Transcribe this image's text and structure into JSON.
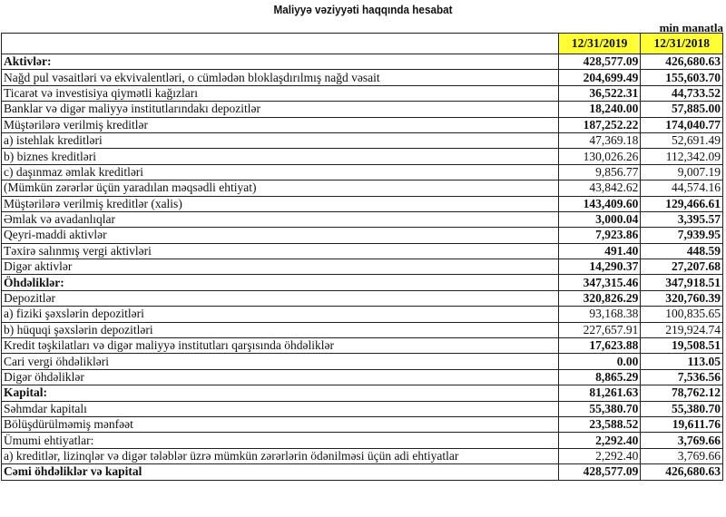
{
  "title": "Maliyyə vəziyyəti haqqında hesabat",
  "unit": "min manatla",
  "columns": [
    "12/31/2019",
    "12/31/2018"
  ],
  "highlight_color": "#ffff33",
  "rows": [
    {
      "label": "Aktivlər:",
      "v2019": "428,577.09",
      "v2018": "426,680.63",
      "bold_label": true,
      "bold_values": true
    },
    {
      "label": "Nağd pul vəsaitləri və  ekvivalentləri, o cümlədən bloklaşdırılmış nağd vəsait",
      "v2019": "204,699.49",
      "v2018": "155,603.70",
      "bold_label": false,
      "bold_values": true
    },
    {
      "label": "Ticarət və investisiya qiymətli kağızları",
      "v2019": "36,522.31",
      "v2018": "44,733.52",
      "bold_label": false,
      "bold_values": true
    },
    {
      "label": "Banklar və digər maliyyə institutlarındakı depozitlər",
      "v2019": "18,240.00",
      "v2018": "57,885.00",
      "bold_label": false,
      "bold_values": true
    },
    {
      "label": "Müştərilərə verilmiş kreditlər",
      "v2019": "187,252.22",
      "v2018": "174,040.77",
      "bold_label": false,
      "bold_values": true
    },
    {
      "label": "a) istehlak kreditləri",
      "v2019": "47,369.18",
      "v2018": "52,691.49",
      "bold_label": false,
      "bold_values": false
    },
    {
      "label": "b) biznes kreditləri",
      "v2019": "130,026.26",
      "v2018": "112,342.09",
      "bold_label": false,
      "bold_values": false
    },
    {
      "label": "c) daşınmaz əmlak kreditləri",
      "v2019": "9,856.77",
      "v2018": "9,007.19",
      "bold_label": false,
      "bold_values": false
    },
    {
      "label": "(Mümkün zərərlər üçün yaradılan məqsədli ehtiyat)",
      "v2019": "43,842.62",
      "v2018": "44,574.16",
      "bold_label": false,
      "bold_values": false
    },
    {
      "label": "Müştərilərə verilmiş kreditlər (xalis)",
      "v2019": "143,409.60",
      "v2018": "129,466.61",
      "bold_label": false,
      "bold_values": true
    },
    {
      "label": "Əmlak və avadanlıqlar",
      "v2019": "3,000.04",
      "v2018": "3,395.57",
      "bold_label": false,
      "bold_values": true
    },
    {
      "label": "Qeyri-maddi aktivlər",
      "v2019": "7,923.86",
      "v2018": "7,939.95",
      "bold_label": false,
      "bold_values": true
    },
    {
      "label": "Təxirə salınmış vergi aktivləri",
      "v2019": "491.40",
      "v2018": "448.59",
      "bold_label": false,
      "bold_values": true
    },
    {
      "label": "Digər aktivlər",
      "v2019": "14,290.37",
      "v2018": "27,207.68",
      "bold_label": false,
      "bold_values": true
    },
    {
      "label": "Öhdəliklər:",
      "v2019": "347,315.46",
      "v2018": "347,918.51",
      "bold_label": true,
      "bold_values": true
    },
    {
      "label": "Depozitlər",
      "v2019": "320,826.29",
      "v2018": "320,760.39",
      "bold_label": false,
      "bold_values": true
    },
    {
      "label": "a) fiziki şəxslərin depozitləri",
      "v2019": "93,168.38",
      "v2018": "100,835.65",
      "bold_label": false,
      "bold_values": false
    },
    {
      "label": "b) hüquqi şəxslərin depozitləri",
      "v2019": "227,657.91",
      "v2018": "219,924.74",
      "bold_label": false,
      "bold_values": false
    },
    {
      "label": "Kredit təşkilatları və digər maliyyə institutları qarşısında öhdəliklər",
      "v2019": "17,623.88",
      "v2018": "19,508.51",
      "bold_label": false,
      "bold_values": true
    },
    {
      "label": "Cari vergi öhdəlikləri",
      "v2019": "0.00",
      "v2018": "113.05",
      "bold_label": false,
      "bold_values": true
    },
    {
      "label": "Digər öhdəliklər",
      "v2019": "8,865.29",
      "v2018": "7,536.56",
      "bold_label": false,
      "bold_values": true
    },
    {
      "label": "Kapital:",
      "v2019": "81,261.63",
      "v2018": "78,762.12",
      "bold_label": true,
      "bold_values": true
    },
    {
      "label": "Səhmdar kapitalı",
      "v2019": "55,380.70",
      "v2018": "55,380.70",
      "bold_label": false,
      "bold_values": true
    },
    {
      "label": "Bölüşdürülməmiş mənfəət",
      "v2019": "23,588.52",
      "v2018": "19,611.76",
      "bold_label": false,
      "bold_values": true
    },
    {
      "label": "Ümumi ehtiyatlar:",
      "v2019": "2,292.40",
      "v2018": "3,769.66",
      "bold_label": false,
      "bold_values": true
    },
    {
      "label": "a) kreditlər, lizinqlər və digər tələblər üzrə mümkün zərərlərin ödənilməsi üçün adi ehtiyatlar",
      "v2019": "2,292.40",
      "v2018": "3,769.66",
      "bold_label": false,
      "bold_values": false
    },
    {
      "label": "Cəmi öhdəliklər və kapital",
      "v2019": "428,577.09",
      "v2018": "426,680.63",
      "bold_label": true,
      "bold_values": true
    }
  ]
}
